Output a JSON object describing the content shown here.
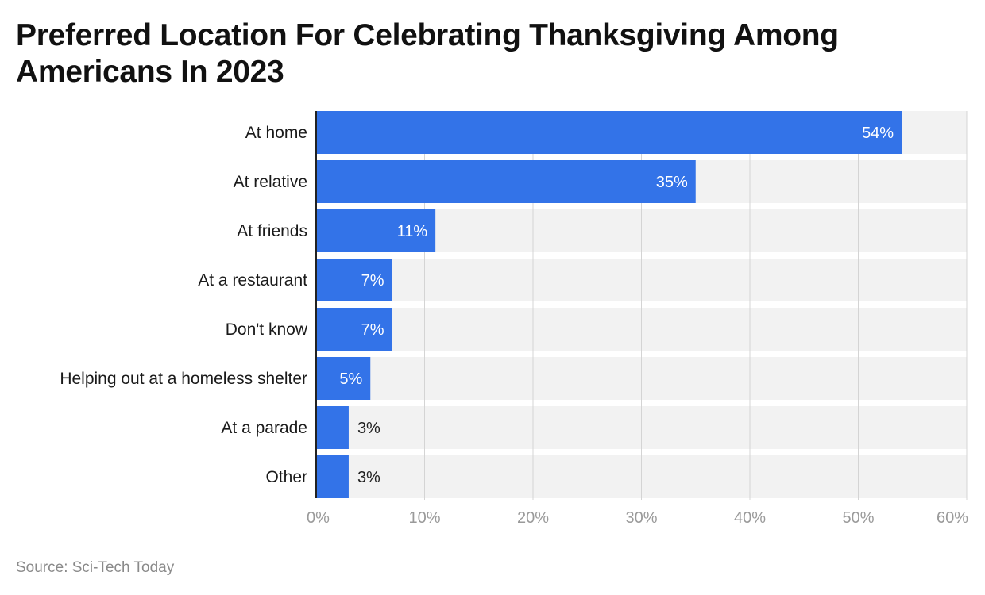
{
  "title": "Preferred Location For Celebrating Thanksgiving Among Americans In 2023",
  "source": "Source: Sci-Tech Today",
  "colors": {
    "bar": "#3373e8",
    "track": "#f2f2f2",
    "grid": "#d4d4d4",
    "axis": "#222222"
  },
  "chart_data": {
    "type": "bar",
    "orientation": "horizontal",
    "title": "Preferred Location For Celebrating Thanksgiving Among Americans In 2023",
    "categories": [
      "At home",
      "At relative",
      "At friends",
      "At a restaurant",
      "Don't know",
      "Helping out at a homeless shelter",
      "At a parade",
      "Other"
    ],
    "values": [
      54,
      35,
      11,
      7,
      7,
      5,
      3,
      3
    ],
    "value_labels": [
      "54%",
      "35%",
      "11%",
      "7%",
      "7%",
      "5%",
      "3%",
      "3%"
    ],
    "xlim": [
      0,
      60
    ],
    "xticks": [
      0,
      10,
      20,
      30,
      40,
      50,
      60
    ],
    "xtick_labels": [
      "0%",
      "10%",
      "20%",
      "30%",
      "40%",
      "50%",
      "60%"
    ],
    "grid": true,
    "legend": "none"
  }
}
